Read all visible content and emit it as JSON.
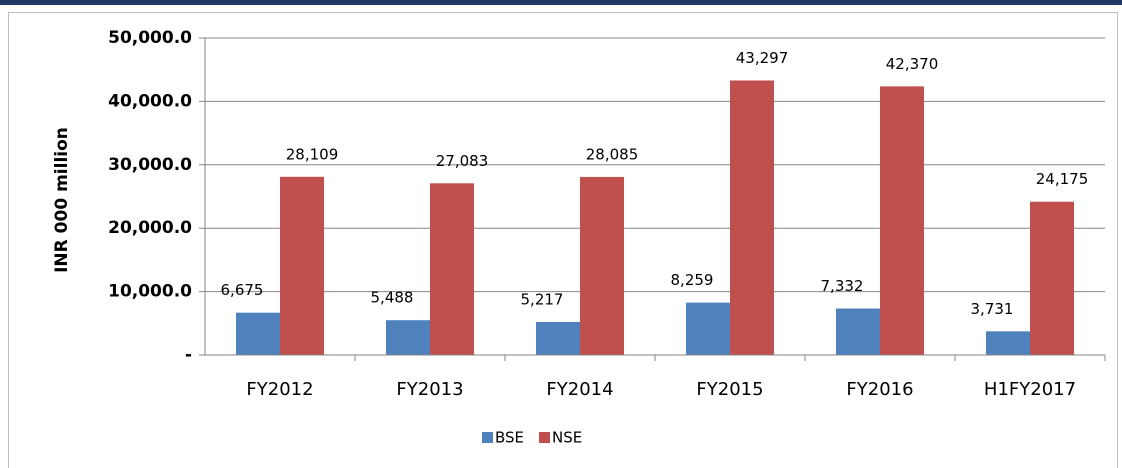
{
  "chart_data": {
    "type": "bar",
    "y_label": "INR 000 million",
    "categories": [
      "FY2012",
      "FY2013",
      "FY2014",
      "FY2015",
      "FY2016",
      "H1FY2017"
    ],
    "series": [
      {
        "name": "BSE",
        "color": "#4f81bd",
        "values": [
          6675,
          5488,
          5217,
          8259,
          7332,
          3731
        ],
        "value_labels": [
          "6,675",
          "5,488",
          "5,217",
          "8,259",
          "7,332",
          "3,731"
        ]
      },
      {
        "name": "NSE",
        "color": "#c0504d",
        "values": [
          28109,
          27083,
          28085,
          43297,
          42370,
          24175
        ],
        "value_labels": [
          "28,109",
          "27,083",
          "28,085",
          "43,297",
          "42,370",
          "24,175"
        ]
      }
    ],
    "ylim": [
      0,
      50000
    ],
    "yticks": [
      {
        "value": 0,
        "label": "-"
      },
      {
        "value": 10000,
        "label": "10,000.0"
      },
      {
        "value": 20000,
        "label": "20,000.0"
      },
      {
        "value": 30000,
        "label": "30,000.0"
      },
      {
        "value": 40000,
        "label": "40,000.0"
      },
      {
        "value": 50000,
        "label": "50,000.0"
      }
    ],
    "grid": true,
    "legend": "bottom"
  }
}
